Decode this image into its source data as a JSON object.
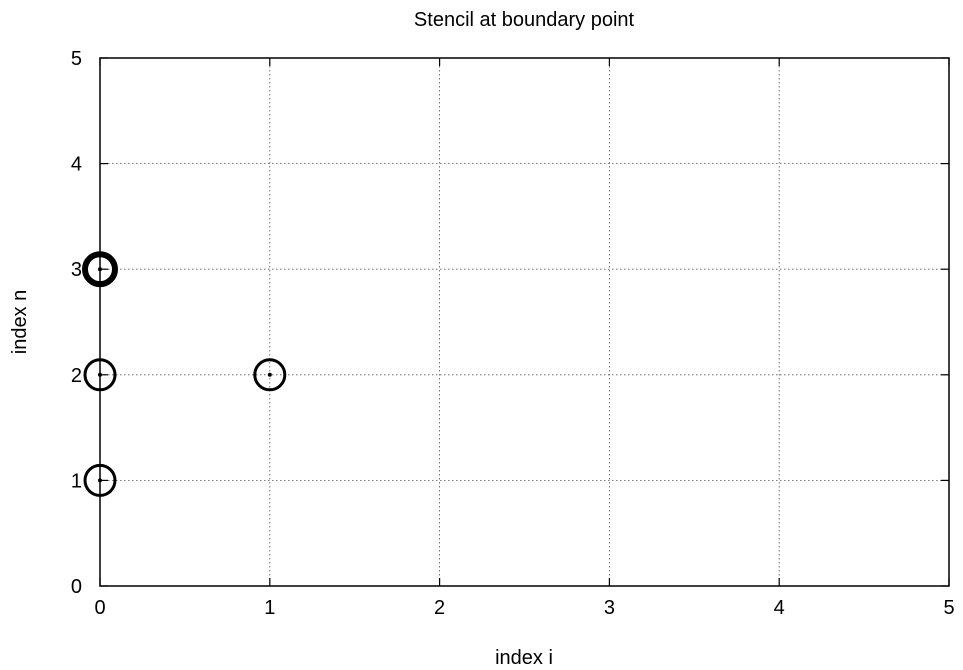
{
  "chart_data": {
    "type": "scatter",
    "title": "Stencil at boundary point",
    "xlabel": "index i",
    "ylabel": "index n",
    "xlim": [
      0,
      5
    ],
    "ylim": [
      0,
      5
    ],
    "xticks": [
      "0",
      "1",
      "2",
      "3",
      "4",
      "5"
    ],
    "yticks": [
      "0",
      "1",
      "2",
      "3",
      "4",
      "5"
    ],
    "grid": true,
    "series": [
      {
        "marker": "open-circle",
        "color": "#000000",
        "points": [
          {
            "x": 0,
            "y": 1,
            "emphasis": "normal"
          },
          {
            "x": 0,
            "y": 2,
            "emphasis": "normal"
          },
          {
            "x": 1,
            "y": 2,
            "emphasis": "normal"
          },
          {
            "x": 0,
            "y": 3,
            "emphasis": "bold"
          }
        ]
      }
    ]
  }
}
